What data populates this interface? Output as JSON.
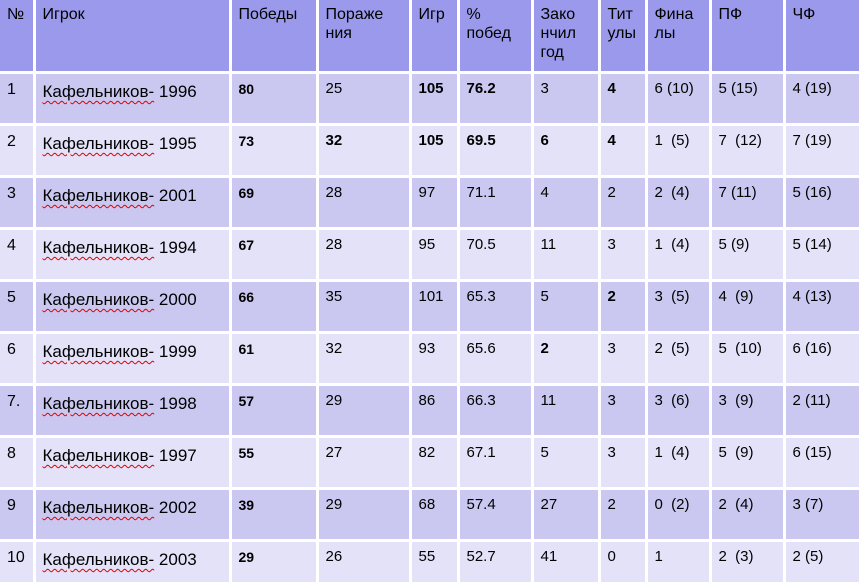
{
  "colors": {
    "header_bg": "#9a99ec",
    "row_dark": "#cac8f0",
    "row_light": "#e4e2f8",
    "grid_border": "#ffffff",
    "text": "#000000",
    "spellcheck_squiggle": "#e00000"
  },
  "table": {
    "columns": [
      {
        "key": "num",
        "label": "№"
      },
      {
        "key": "player",
        "label": "Игрок"
      },
      {
        "key": "wins",
        "label": "Победы"
      },
      {
        "key": "losses",
        "label": "Пораже\nния"
      },
      {
        "key": "games",
        "label": "Игр"
      },
      {
        "key": "pct",
        "label": "%\nпобед"
      },
      {
        "key": "year_end",
        "label": "Зако\nнчил\nгод"
      },
      {
        "key": "titles",
        "label": "Тит\nулы"
      },
      {
        "key": "finals",
        "label": "Фина\nлы"
      },
      {
        "key": "sf",
        "label": "ПФ"
      },
      {
        "key": "qf",
        "label": "ЧФ"
      }
    ],
    "rows": [
      {
        "num": "1",
        "player_name": "Кафельников-",
        "player_year": "1996",
        "wins": "80",
        "losses": "25",
        "games": "105",
        "pct": "76.2",
        "year_end": "3",
        "titles": "4",
        "finals": "6 (10)",
        "sf": "5 (15)",
        "qf": "4 (19)",
        "bold": [
          "games",
          "pct",
          "titles"
        ]
      },
      {
        "num": "2",
        "player_name": "Кафельников-",
        "player_year": "1995",
        "wins": "73",
        "losses": "32",
        "games": "105",
        "pct": "69.5",
        "year_end": "6",
        "titles": "4",
        "finals": "1  (5)",
        "sf": "7  (12)",
        "qf": "7 (19)",
        "bold": [
          "losses",
          "games",
          "pct",
          "year_end",
          "titles"
        ]
      },
      {
        "num": "3",
        "player_name": "Кафельников-",
        "player_year": "2001",
        "wins": "69",
        "losses": "28",
        "games": "97",
        "pct": "71.1",
        "year_end": "4",
        "titles": "2",
        "finals": "2  (4)",
        "sf": "7 (11)",
        "qf": "5 (16)",
        "bold": []
      },
      {
        "num": "4",
        "player_name": "Кафельников-",
        "player_year": "1994",
        "wins": "67",
        "losses": "28",
        "games": "95",
        "pct": "70.5",
        "year_end": "11",
        "titles": "3",
        "finals": "1  (4)",
        "sf": "5 (9)",
        "qf": "5 (14)",
        "bold": []
      },
      {
        "num": "5",
        "player_name": "Кафельников-",
        "player_year": "2000",
        "wins": "66",
        "losses": "35",
        "games": "101",
        "pct": "65.3",
        "year_end": "5",
        "titles": "2",
        "finals": "3  (5)",
        "sf": "4  (9)",
        "qf": "4 (13)",
        "bold": [
          "titles"
        ]
      },
      {
        "num": "6",
        "player_name": "Кафельников-",
        "player_year": "1999",
        "wins": "61",
        "losses": "32",
        "games": "93",
        "pct": "65.6",
        "year_end": "2",
        "titles": "3",
        "finals": "2  (5)",
        "sf": "5  (10)",
        "qf": "6 (16)",
        "bold": [
          "year_end"
        ]
      },
      {
        "num": "7.",
        "player_name": "Кафельников-",
        "player_year": "1998",
        "wins": "57",
        "losses": "29",
        "games": "86",
        "pct": "66.3",
        "year_end": "11",
        "titles": "3",
        "finals": "3  (6)",
        "sf": "3  (9)",
        "qf": "2 (11)",
        "bold": []
      },
      {
        "num": "8",
        "player_name": "Кафельников-",
        "player_year": "1997",
        "wins": "55",
        "losses": "27",
        "games": "82",
        "pct": "67.1",
        "year_end": "5",
        "titles": "3",
        "finals": "1  (4)",
        "sf": "5  (9)",
        "qf": "6 (15)",
        "bold": []
      },
      {
        "num": "9",
        "player_name": "Кафельников-",
        "player_year": "2002",
        "wins": "39",
        "losses": "29",
        "games": "68",
        "pct": "57.4",
        "year_end": "27",
        "titles": "2",
        "finals": "0  (2)",
        "sf": "2  (4)",
        "qf": "3 (7)",
        "bold": []
      },
      {
        "num": "10",
        "player_name": "Кафельников-",
        "player_year": "2003",
        "wins": "29",
        "losses": "26",
        "games": "55",
        "pct": "52.7",
        "year_end": "41",
        "titles": "0",
        "finals": "1",
        "sf": "2  (3)",
        "qf": "2 (5)",
        "bold": []
      }
    ]
  }
}
